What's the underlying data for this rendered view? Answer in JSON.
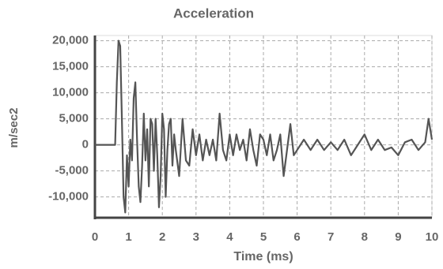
{
  "chart_data": {
    "type": "line",
    "title": "Acceleration",
    "x_label": "Time (ms)",
    "y_label": "m/sec2",
    "x": [
      0,
      0.6,
      0.65,
      0.7,
      0.75,
      0.8,
      0.85,
      0.9,
      0.95,
      1.0,
      1.05,
      1.1,
      1.15,
      1.2,
      1.25,
      1.3,
      1.35,
      1.4,
      1.45,
      1.5,
      1.55,
      1.6,
      1.65,
      1.7,
      1.75,
      1.8,
      1.85,
      1.9,
      1.95,
      2.0,
      2.05,
      2.1,
      2.15,
      2.2,
      2.25,
      2.3,
      2.35,
      2.4,
      2.5,
      2.6,
      2.7,
      2.8,
      2.9,
      3.0,
      3.1,
      3.2,
      3.3,
      3.4,
      3.5,
      3.6,
      3.7,
      3.8,
      3.9,
      4.0,
      4.1,
      4.2,
      4.3,
      4.4,
      4.5,
      4.6,
      4.7,
      4.8,
      4.9,
      5.0,
      5.1,
      5.2,
      5.3,
      5.4,
      5.5,
      5.6,
      5.7,
      5.8,
      5.9,
      6.0,
      6.2,
      6.4,
      6.6,
      6.8,
      7.0,
      7.2,
      7.4,
      7.6,
      7.8,
      8.0,
      8.2,
      8.4,
      8.6,
      8.8,
      9.0,
      9.2,
      9.4,
      9.6,
      9.8,
      9.9,
      10.0
    ],
    "values": [
      0,
      0,
      12000,
      20000,
      19000,
      5000,
      -10000,
      -13000,
      -2000,
      -8000,
      1000,
      -3000,
      9000,
      12000,
      1000,
      -8000,
      -11000,
      -4000,
      6000,
      -3000,
      3000,
      -8000,
      5000,
      4000,
      -5000,
      5000,
      -2000,
      -12000,
      -6000,
      6000,
      3000,
      -10000,
      -1000,
      4000,
      5000,
      -4000,
      2000,
      -1000,
      -6000,
      5000,
      -3000,
      -4000,
      3000,
      -2000,
      2000,
      -3000,
      1000,
      -2000,
      1000,
      -3000,
      6000,
      -1000,
      -3000,
      2000,
      -2000,
      2000,
      -1000,
      1000,
      -3000,
      3000,
      -1000,
      -4000,
      2000,
      1000,
      -2000,
      2000,
      -3000,
      -1000,
      2000,
      -6000,
      -1000,
      4000,
      -2000,
      -1000,
      1000,
      -1000,
      1000,
      -1000,
      500,
      -1000,
      1000,
      -2000,
      0,
      2000,
      -1000,
      1000,
      -1000,
      -500,
      -2000,
      500,
      1000,
      -1000,
      500,
      5000,
      1000
    ],
    "color": "#555555",
    "xlim": [
      0,
      10
    ],
    "xticks": [
      0,
      1,
      2,
      3,
      4,
      5,
      6,
      7,
      8,
      9,
      10
    ],
    "ylim": [
      -14000,
      21000
    ],
    "yticks": [
      {
        "value": -10000,
        "label": "-10,000"
      },
      {
        "value": -5000,
        "label": "-5,000"
      },
      0,
      {
        "value": 5000,
        "label": "5,000"
      },
      {
        "value": 10000,
        "label": "10,000"
      },
      {
        "value": 15000,
        "label": "15,000"
      },
      {
        "value": 20000,
        "label": "20,000"
      }
    ],
    "grid": true
  }
}
